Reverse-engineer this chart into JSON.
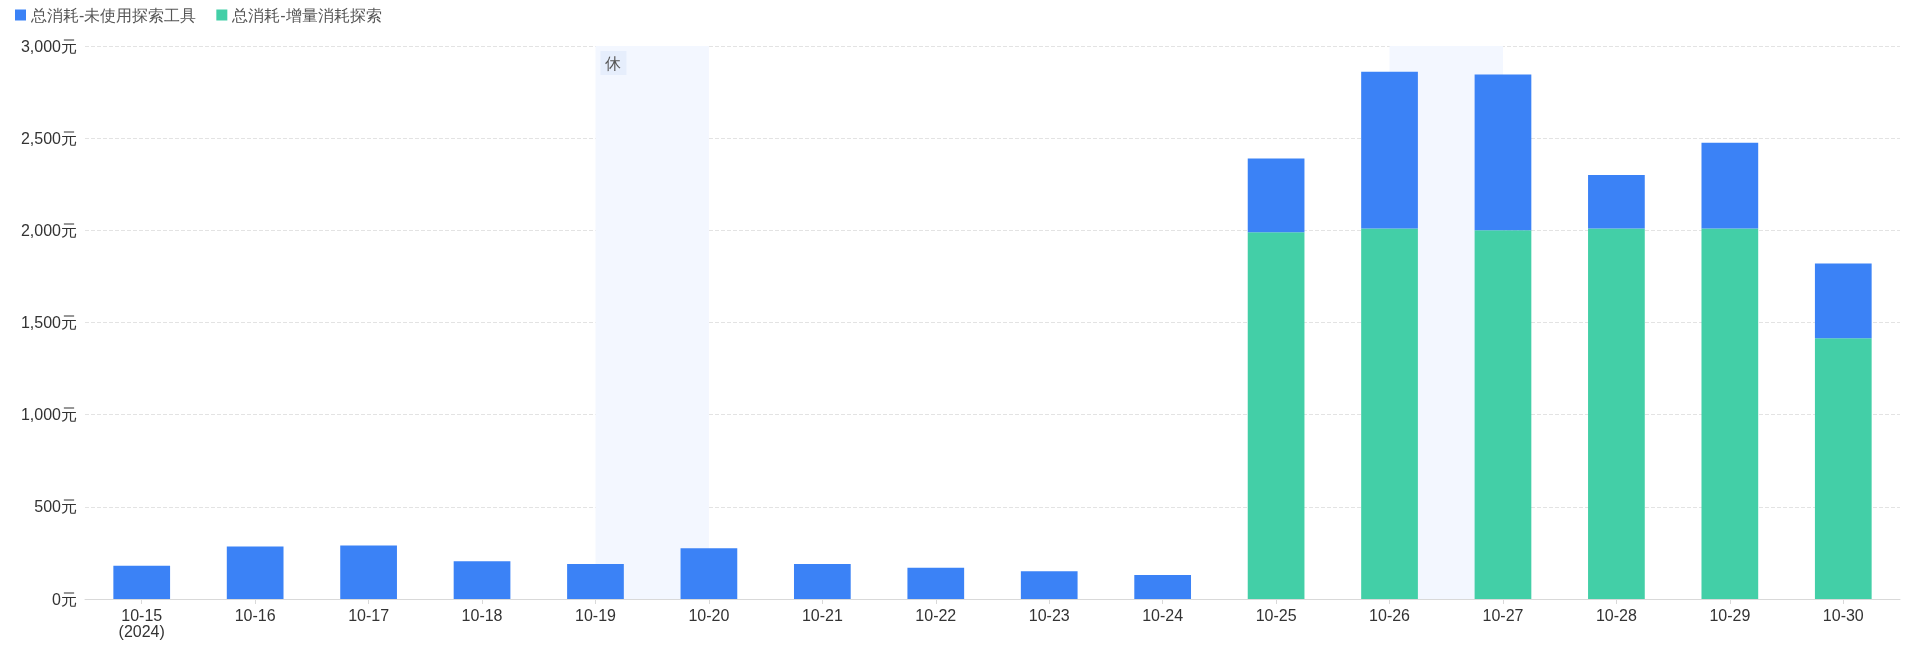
{
  "chart_data": {
    "type": "bar",
    "stacked": true,
    "categories": [
      "10-15\n(2024)",
      "10-16",
      "10-17",
      "10-18",
      "10-19",
      "10-20",
      "10-21",
      "10-22",
      "10-23",
      "10-24",
      "10-25",
      "10-26",
      "10-27",
      "10-28",
      "10-29",
      "10-30"
    ],
    "series": [
      {
        "name": "总消耗-增量消耗探索",
        "color": "#43cfa7",
        "values": [
          null,
          null,
          null,
          null,
          null,
          null,
          null,
          null,
          null,
          null,
          1990,
          2010,
          2000,
          2010,
          2010,
          1415
        ]
      },
      {
        "name": "总消耗-未使用探索工具",
        "color": "#3b82f6",
        "values": [
          180,
          285,
          290,
          205,
          190,
          275,
          190,
          170,
          150,
          130,
          400,
          850,
          845,
          290,
          465,
          405
        ]
      }
    ],
    "ylim": [
      0,
      3000
    ],
    "yticks": [
      {
        "value": 0,
        "label": "0元"
      },
      {
        "value": 500,
        "label": "500元"
      },
      {
        "value": 1000,
        "label": "1,000元"
      },
      {
        "value": 1500,
        "label": "1,500元"
      },
      {
        "value": 2000,
        "label": "2,000元"
      },
      {
        "value": 2500,
        "label": "2,500元"
      },
      {
        "value": 3000,
        "label": "3,000元"
      }
    ],
    "bands": [
      {
        "axis": "x",
        "from": "10-19",
        "to": "10-20",
        "label": "休",
        "color": "#f3f7ff"
      },
      {
        "axis": "x",
        "from": "10-26",
        "to": "10-27",
        "color": "#f3f7ff"
      }
    ],
    "grid": "y",
    "legend": "top left"
  }
}
